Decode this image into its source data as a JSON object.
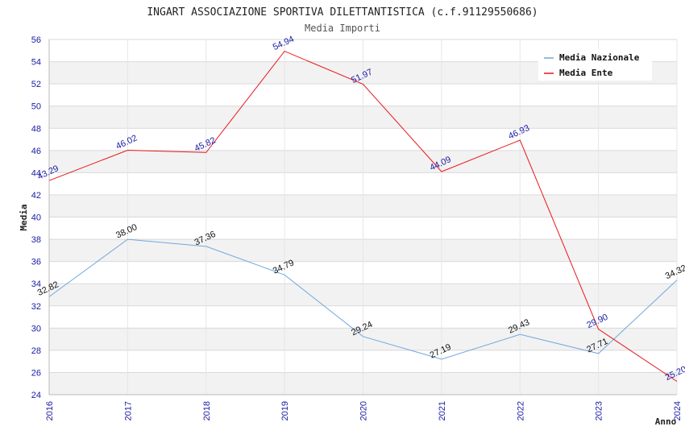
{
  "chart_data": {
    "type": "line",
    "title": "INGART ASSOCIAZIONE SPORTIVA DILETTANTISTICA (c.f.91129550686)",
    "subtitle": "Media Importi",
    "xlabel": "Anno",
    "ylabel": "Media",
    "categories": [
      "2016",
      "2017",
      "2018",
      "2019",
      "2020",
      "2021",
      "2022",
      "2023",
      "2024"
    ],
    "ylim": [
      24,
      56
    ],
    "yticks": [
      "24",
      "26",
      "28",
      "30",
      "32",
      "34",
      "36",
      "38",
      "40",
      "42",
      "44",
      "46",
      "48",
      "50",
      "52",
      "54",
      "56"
    ],
    "grid": true,
    "legend_position": "top-right",
    "series": [
      {
        "name": "Media Nazionale",
        "color": "#6fa8dc",
        "label_color": "#111111",
        "values": [
          32.82,
          38.0,
          37.36,
          34.79,
          29.24,
          27.19,
          29.43,
          27.71,
          34.32
        ],
        "labels": [
          "32.82",
          "38.00",
          "37.36",
          "34.79",
          "29.24",
          "27.19",
          "29.43",
          "27.71",
          "34.32"
        ]
      },
      {
        "name": "Media Ente",
        "color": "#e8161b",
        "label_color": "#1a1aa6",
        "values": [
          43.29,
          46.02,
          45.82,
          54.94,
          51.97,
          44.09,
          46.93,
          29.9,
          25.2
        ],
        "labels": [
          "43.29",
          "46.02",
          "45.82",
          "54.94",
          "51.97",
          "44.09",
          "46.93",
          "29.90",
          "25.20"
        ]
      }
    ]
  }
}
